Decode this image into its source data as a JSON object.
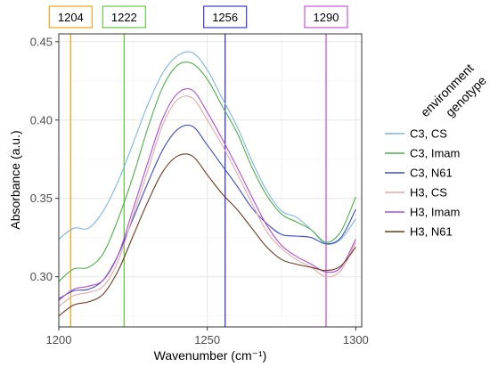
{
  "chart_data": {
    "type": "line",
    "xlabel": "Wavenumber (cm⁻¹)",
    "ylabel": "Absorbance (a.u.)",
    "xlim": [
      1200,
      1302
    ],
    "ylim": [
      0.268,
      0.455
    ],
    "x_ticks": [
      "1200",
      "1250",
      "1300"
    ],
    "x_tick_values": [
      1200,
      1250,
      1300
    ],
    "y_ticks": [
      "0.30",
      "0.35",
      "0.40",
      "0.45"
    ],
    "y_tick_values": [
      0.3,
      0.35,
      0.4,
      0.45
    ],
    "grid": true,
    "legend_position": "right",
    "legend_title_lines": [
      "environment",
      "genotype"
    ],
    "x": [
      1200,
      1205,
      1210,
      1215,
      1220,
      1225,
      1230,
      1235,
      1240,
      1245,
      1250,
      1255,
      1260,
      1265,
      1270,
      1275,
      1280,
      1285,
      1290,
      1295,
      1300
    ],
    "series": [
      {
        "name": "C3, CS",
        "color": "#7fb3e0",
        "values": [
          0.324,
          0.331,
          0.331,
          0.342,
          0.361,
          0.385,
          0.41,
          0.43,
          0.441,
          0.443,
          0.432,
          0.414,
          0.396,
          0.374,
          0.355,
          0.342,
          0.338,
          0.33,
          0.321,
          0.324,
          0.337
        ]
      },
      {
        "name": "C3, Imam",
        "color": "#4daf4a",
        "values": [
          0.297,
          0.305,
          0.306,
          0.315,
          0.337,
          0.364,
          0.395,
          0.421,
          0.435,
          0.436,
          0.426,
          0.409,
          0.392,
          0.37,
          0.352,
          0.34,
          0.335,
          0.33,
          0.322,
          0.329,
          0.351
        ]
      },
      {
        "name": "C3, N61",
        "color": "#3b4bc8",
        "values": [
          0.286,
          0.291,
          0.292,
          0.298,
          0.314,
          0.337,
          0.36,
          0.381,
          0.394,
          0.396,
          0.384,
          0.371,
          0.358,
          0.344,
          0.334,
          0.327,
          0.326,
          0.325,
          0.321,
          0.325,
          0.343
        ]
      },
      {
        "name": "H3, CS",
        "color": "#e0a9a9",
        "values": [
          0.281,
          0.288,
          0.29,
          0.294,
          0.31,
          0.339,
          0.368,
          0.397,
          0.413,
          0.414,
          0.4,
          0.384,
          0.366,
          0.347,
          0.329,
          0.318,
          0.311,
          0.306,
          0.3,
          0.304,
          0.322
        ]
      },
      {
        "name": "H3, Imam",
        "color": "#b24ccf",
        "values": [
          0.285,
          0.292,
          0.294,
          0.298,
          0.314,
          0.343,
          0.373,
          0.401,
          0.417,
          0.419,
          0.405,
          0.388,
          0.37,
          0.351,
          0.333,
          0.32,
          0.313,
          0.308,
          0.303,
          0.306,
          0.324
        ]
      },
      {
        "name": "H3, N61",
        "color": "#6b3a1e",
        "values": [
          0.275,
          0.282,
          0.284,
          0.289,
          0.304,
          0.326,
          0.348,
          0.367,
          0.377,
          0.377,
          0.365,
          0.353,
          0.343,
          0.331,
          0.319,
          0.311,
          0.308,
          0.306,
          0.304,
          0.307,
          0.319
        ]
      }
    ],
    "markers": [
      {
        "label": "1204",
        "x": 1204,
        "color": "#f5a21b"
      },
      {
        "label": "1222",
        "x": 1222,
        "color": "#66cc44"
      },
      {
        "label": "1256",
        "x": 1256,
        "color": "#3a3acc"
      },
      {
        "label": "1290",
        "x": 1290,
        "color": "#cc55dd"
      }
    ]
  }
}
